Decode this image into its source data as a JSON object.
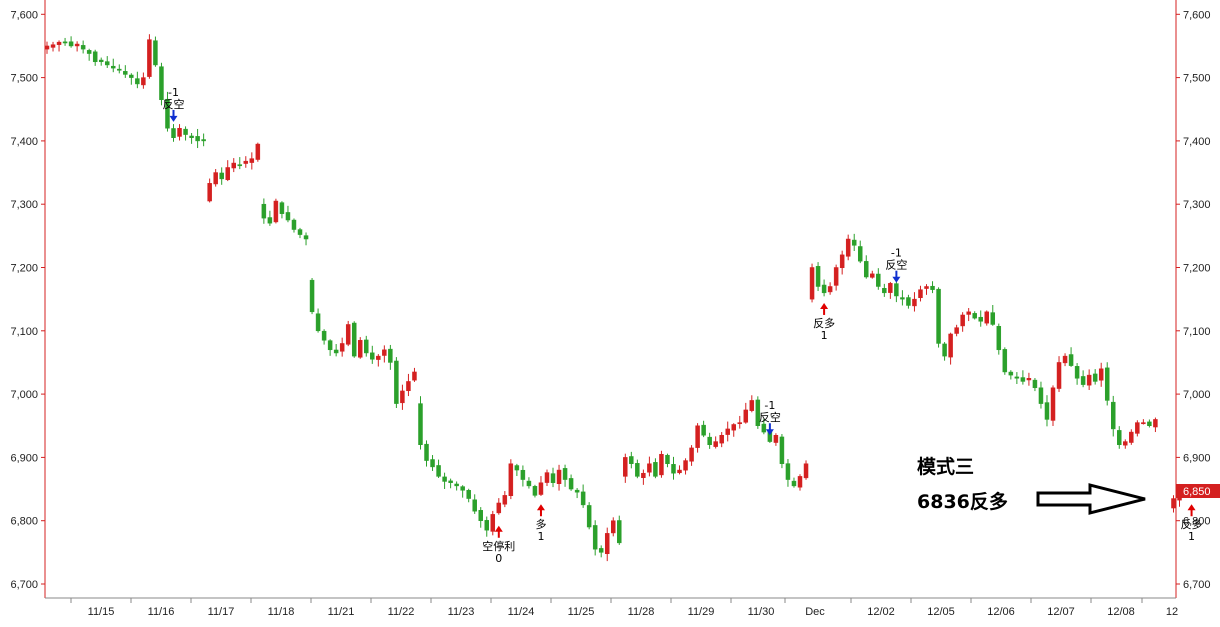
{
  "chart_data": {
    "type": "candlestick",
    "title": "",
    "xlabel": "",
    "ylabel": "",
    "ylim": [
      6680,
      7610
    ],
    "y_ticks": [
      6700,
      6800,
      6900,
      7000,
      7100,
      7200,
      7300,
      7400,
      7500,
      7600
    ],
    "grid": false,
    "colors": {
      "up": "#d42020",
      "down": "#2ba02b",
      "axis": "#d42020",
      "signal_long": "#e00000",
      "signal_short": "#1030d0"
    },
    "x_labels": [
      "11/15",
      "11/16",
      "11/17",
      "11/18",
      "11/21",
      "11/22",
      "11/23",
      "11/24",
      "11/25",
      "11/28",
      "11/29",
      "11/30",
      "Dec",
      "12/02",
      "12/05",
      "12/06",
      "12/07",
      "12/08",
      "12"
    ],
    "last_price_label": "6,850",
    "last_price": 6850,
    "annotations": [
      {
        "bar": 21,
        "lines": [
          "-1",
          "反空"
        ],
        "signal": "short",
        "price": 7430
      },
      {
        "bar": 75,
        "lines": [
          "空停利",
          "0"
        ],
        "signal": "long",
        "price": 6792
      },
      {
        "bar": 82,
        "lines": [
          "多",
          "1"
        ],
        "signal": "long",
        "price": 6826
      },
      {
        "bar": 120,
        "lines": [
          "-1",
          "反空"
        ],
        "signal": "short",
        "price": 6935
      },
      {
        "bar": 129,
        "lines": [
          "反多",
          "1"
        ],
        "signal": "long",
        "price": 7144
      },
      {
        "bar": 141,
        "lines": [
          "-1",
          "反空"
        ],
        "signal": "short",
        "price": 7176
      },
      {
        "bar": 190,
        "lines": [
          "反多",
          "1"
        ],
        "signal": "long",
        "price": 6826
      }
    ],
    "text_notes": [
      "模式三",
      "6836反多"
    ],
    "segments": [
      {
        "start": 0,
        "open": 7545,
        "closes": [
          7550,
          7552,
          7556,
          7555,
          7550,
          7553,
          7545,
          7538,
          7525,
          7525,
          7520,
          7515,
          7512,
          7505,
          7500,
          7490,
          7500,
          7560,
          7520,
          7465,
          7420,
          7405,
          7420,
          7410,
          7405,
          7400,
          7400
        ]
      },
      {
        "start": 27,
        "open": 7305,
        "closes": [
          7333,
          7350,
          7340,
          7358,
          7365,
          7362,
          7368,
          7372,
          7395
        ]
      },
      {
        "start": 36,
        "open": 7300,
        "closes": [
          7278,
          7270,
          7305,
          7285,
          7275,
          7260,
          7252,
          7245
        ]
      },
      {
        "start": 44,
        "open": 7180,
        "closes": [
          7130,
          7100,
          7085,
          7070,
          7065,
          7080,
          7110,
          7060,
          7085,
          7065,
          7055,
          7060,
          7070,
          7050,
          6985,
          7005,
          7020,
          7035
        ]
      },
      {
        "start": 62,
        "open": 6985,
        "closes": [
          6920,
          6895,
          6885,
          6870,
          6862,
          6860,
          6855,
          6848,
          6835,
          6815,
          6800,
          6785,
          6810,
          6828,
          6840,
          6890,
          6880,
          6865,
          6855,
          6840,
          6860,
          6876,
          6860,
          6880,
          6865,
          6850,
          6845,
          6825,
          6790,
          6755,
          6750,
          6780,
          6800,
          6765
        ]
      },
      {
        "start": 96,
        "open": 6870,
        "closes": [
          6900,
          6890,
          6870,
          6875,
          6890,
          6870,
          6905,
          6890,
          6875,
          6880,
          6895,
          6915,
          6950,
          6935,
          6920,
          6925,
          6935,
          6945,
          6952,
          6955,
          6975,
          6990,
          6950,
          6940,
          6925,
          6935,
          6890,
          6865,
          6855,
          6870,
          6890
        ]
      },
      {
        "start": 127,
        "open": 7150,
        "closes": [
          7200,
          7170,
          7160,
          7170,
          7200,
          7220,
          7245,
          7235,
          7210,
          7185,
          7190,
          7170,
          7160,
          7175,
          7155,
          7150,
          7140,
          7150,
          7165,
          7170,
          7165,
          7080,
          7060,
          7095,
          7105,
          7125,
          7130,
          7120,
          7115,
          7130,
          7110,
          7070,
          7035,
          7030,
          7025,
          7020,
          7025,
          7010,
          6985,
          6960,
          7010,
          7050,
          7060,
          7045,
          7025,
          7015,
          7030,
          7020,
          7040,
          6990,
          6945,
          6920,
          6925,
          6940,
          6955,
          6955,
          6950,
          6960
        ]
      },
      {
        "start": 187,
        "open": 6820,
        "closes": [
          6835,
          6850
        ]
      }
    ]
  }
}
